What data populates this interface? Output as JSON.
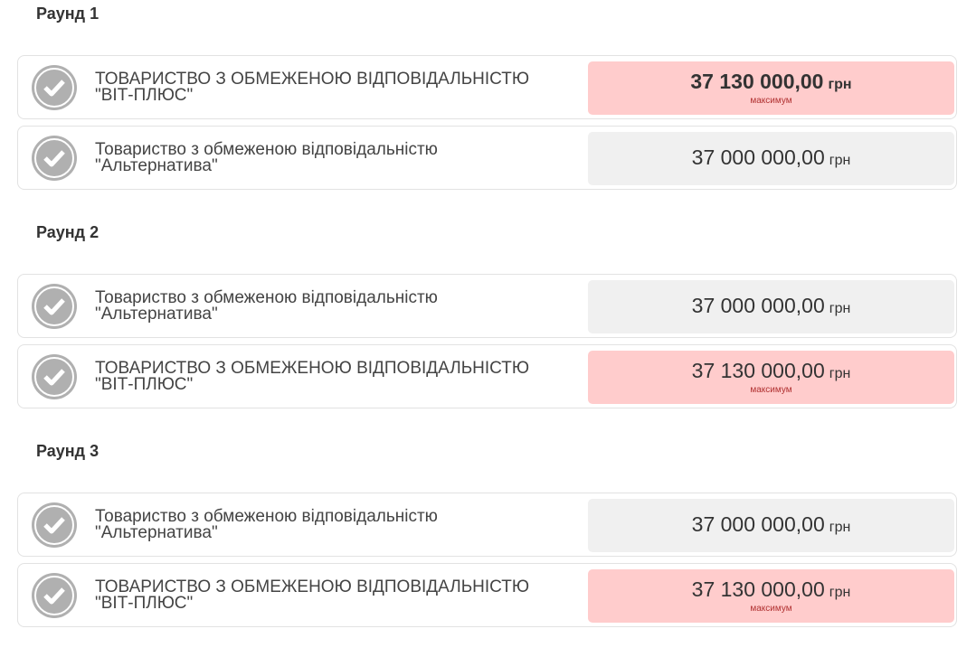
{
  "colors": {
    "max_bg": "#ffcccc",
    "normal_bg": "#f0f0f0",
    "max_label": "#b03030",
    "check_icon": "#b0b0b0"
  },
  "rounds": [
    {
      "title": "Раунд 1",
      "bids": [
        {
          "name_line1": "ТОВАРИСТВО З ОБМЕЖЕНОЮ ВІДПОВІДАЛЬНІСТЮ",
          "name_line2": "\"ВІТ-ПЛЮС\"",
          "amount": "37 130 000,00",
          "currency": "грн",
          "label": "максимум",
          "is_max": true,
          "emphasized": true
        },
        {
          "name_line1": "Товариство з обмеженою відповідальністю",
          "name_line2": "\"Альтернатива\"",
          "amount": "37 000 000,00",
          "currency": "грн",
          "is_max": false
        }
      ]
    },
    {
      "title": "Раунд 2",
      "bids": [
        {
          "name_line1": "Товариство з обмеженою відповідальністю",
          "name_line2": "\"Альтернатива\"",
          "amount": "37 000 000,00",
          "currency": "грн",
          "is_max": false
        },
        {
          "name_line1": "ТОВАРИСТВО З ОБМЕЖЕНОЮ ВІДПОВІДАЛЬНІСТЮ",
          "name_line2": "\"ВІТ-ПЛЮС\"",
          "amount": "37 130 000,00",
          "currency": "грн",
          "label": "максимум",
          "is_max": true
        }
      ]
    },
    {
      "title": "Раунд 3",
      "bids": [
        {
          "name_line1": "Товариство з обмеженою відповідальністю",
          "name_line2": "\"Альтернатива\"",
          "amount": "37 000 000,00",
          "currency": "грн",
          "is_max": false
        },
        {
          "name_line1": "ТОВАРИСТВО З ОБМЕЖЕНОЮ ВІДПОВІДАЛЬНІСТЮ",
          "name_line2": "\"ВІТ-ПЛЮС\"",
          "amount": "37 130 000,00",
          "currency": "грн",
          "label": "максимум",
          "is_max": true
        }
      ]
    }
  ]
}
